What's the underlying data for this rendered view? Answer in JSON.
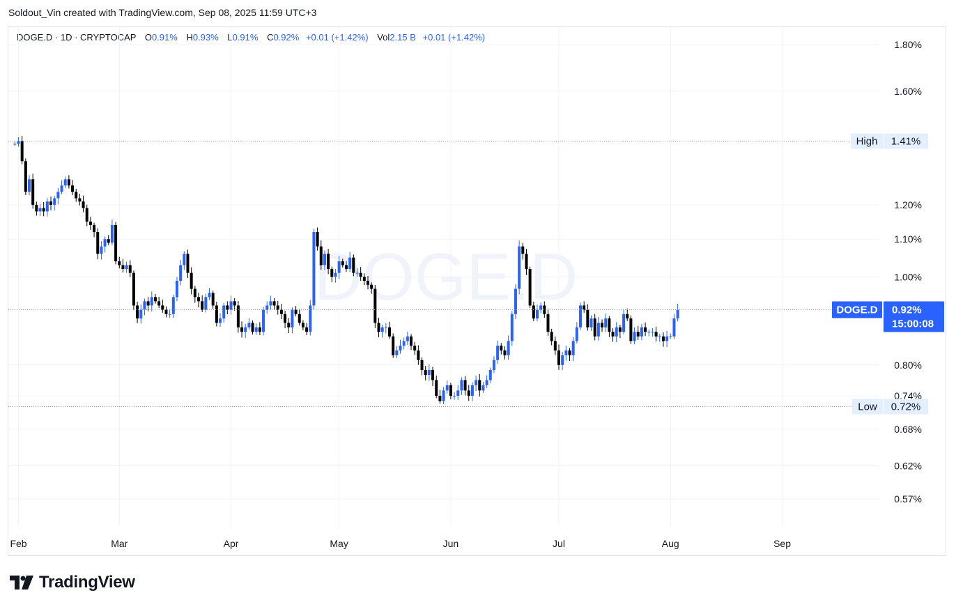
{
  "header": {
    "credit": "Soldout_Vin created with TradingView.com, Sep 08, 2025 11:59 UTC+3"
  },
  "legend": {
    "symbol": "DOGE.D · 1D · CRYPTOCAP",
    "o_label": "O",
    "o_value": "0.91%",
    "h_label": "H",
    "h_value": "0.93%",
    "l_label": "L",
    "l_value": "0.91%",
    "c_label": "C",
    "c_value": "0.92%",
    "change": "+0.01 (+1.42%)",
    "vol_label": "Vol",
    "vol_value": "2.15 B",
    "vol_change": "+0.01 (+1.42%)"
  },
  "watermark": "DOGE.D",
  "markers": {
    "high": {
      "label": "High",
      "value_label": "1.41%",
      "value": 1.41
    },
    "low": {
      "label": "Low",
      "value_label": "0.72%",
      "value": 0.72
    },
    "last": {
      "label": "DOGE.D",
      "value_label": "0.92%",
      "countdown": "15:00:08",
      "value": 0.92
    }
  },
  "brand": {
    "name": "TradingView"
  },
  "colors": {
    "up": "#2962ff",
    "down": "#000000",
    "grid": "#f0f3fa",
    "marker_bg": "#e3effd",
    "last_bg": "#2962ff"
  },
  "chart_data": {
    "type": "candlestick",
    "series_name": "DOGE.D",
    "y_scale": "log",
    "y_unit": "%",
    "ylim": [
      0.52,
      1.9
    ],
    "xlim": [
      "2025-01-31",
      "2025-09-30"
    ],
    "y_ticks": [
      {
        "value": 1.8,
        "label": "1.80%"
      },
      {
        "value": 1.6,
        "label": "1.60%"
      },
      {
        "value": 1.2,
        "label": "1.20%"
      },
      {
        "value": 1.1,
        "label": "1.10%"
      },
      {
        "value": 1.0,
        "label": "1.00%"
      },
      {
        "value": 0.8,
        "label": "0.80%"
      },
      {
        "value": 0.74,
        "label": "0.74%"
      },
      {
        "value": 0.68,
        "label": "0.68%"
      },
      {
        "value": 0.62,
        "label": "0.62%"
      },
      {
        "value": 0.57,
        "label": "0.57%"
      }
    ],
    "x_ticks": [
      {
        "date": "2025-02-01",
        "label": "Feb"
      },
      {
        "date": "2025-03-01",
        "label": "Mar"
      },
      {
        "date": "2025-04-01",
        "label": "Apr"
      },
      {
        "date": "2025-05-01",
        "label": "May"
      },
      {
        "date": "2025-06-01",
        "label": "Jun"
      },
      {
        "date": "2025-07-01",
        "label": "Jul"
      },
      {
        "date": "2025-08-01",
        "label": "Aug"
      },
      {
        "date": "2025-09-01",
        "label": "Sep"
      }
    ],
    "start_date": "2025-01-31",
    "closes": [
      1.4,
      1.41,
      1.34,
      1.24,
      1.28,
      1.2,
      1.18,
      1.19,
      1.18,
      1.21,
      1.2,
      1.22,
      1.24,
      1.26,
      1.28,
      1.26,
      1.24,
      1.22,
      1.21,
      1.19,
      1.15,
      1.14,
      1.12,
      1.06,
      1.08,
      1.1,
      1.09,
      1.14,
      1.04,
      1.03,
      1.02,
      1.03,
      1.01,
      0.93,
      0.9,
      0.92,
      0.94,
      0.93,
      0.95,
      0.94,
      0.93,
      0.92,
      0.91,
      0.91,
      0.95,
      0.99,
      1.03,
      1.06,
      1.01,
      0.97,
      0.95,
      0.94,
      0.92,
      0.95,
      0.96,
      0.93,
      0.89,
      0.9,
      0.93,
      0.92,
      0.94,
      0.93,
      0.88,
      0.87,
      0.88,
      0.89,
      0.87,
      0.88,
      0.87,
      0.92,
      0.93,
      0.94,
      0.93,
      0.92,
      0.91,
      0.89,
      0.88,
      0.92,
      0.91,
      0.89,
      0.88,
      0.87,
      0.93,
      1.12,
      1.08,
      1.03,
      1.06,
      1.02,
      1.0,
      1.01,
      1.04,
      1.03,
      1.02,
      1.05,
      1.01,
      1.01,
      1.0,
      0.99,
      0.98,
      0.97,
      0.89,
      0.87,
      0.88,
      0.88,
      0.86,
      0.82,
      0.83,
      0.84,
      0.85,
      0.86,
      0.84,
      0.83,
      0.81,
      0.79,
      0.78,
      0.79,
      0.77,
      0.74,
      0.73,
      0.75,
      0.76,
      0.74,
      0.74,
      0.75,
      0.77,
      0.75,
      0.74,
      0.76,
      0.77,
      0.75,
      0.76,
      0.77,
      0.79,
      0.81,
      0.84,
      0.83,
      0.82,
      0.85,
      0.91,
      0.97,
      1.08,
      1.06,
      1.02,
      0.93,
      0.9,
      0.92,
      0.93,
      0.91,
      0.87,
      0.85,
      0.83,
      0.8,
      0.82,
      0.83,
      0.82,
      0.85,
      0.88,
      0.93,
      0.92,
      0.88,
      0.9,
      0.86,
      0.89,
      0.88,
      0.9,
      0.87,
      0.86,
      0.88,
      0.87,
      0.91,
      0.9,
      0.85,
      0.87,
      0.86,
      0.88,
      0.87,
      0.87,
      0.87,
      0.86,
      0.86,
      0.85,
      0.86,
      0.86,
      0.9,
      0.92
    ]
  }
}
